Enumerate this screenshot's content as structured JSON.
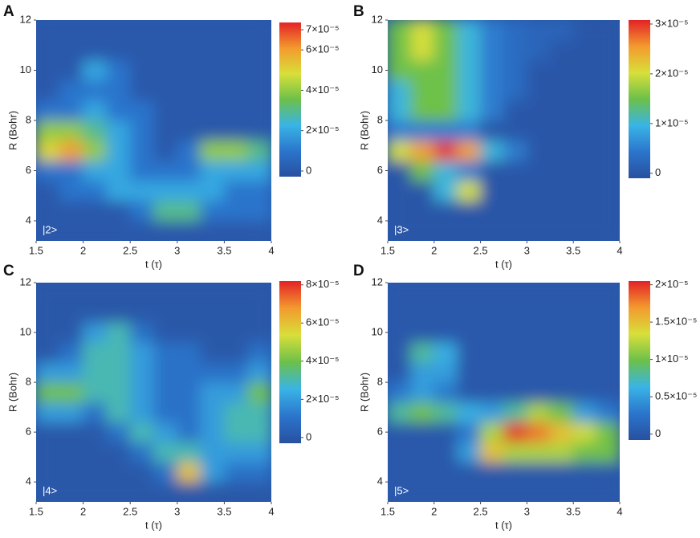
{
  "chart_data": [
    {
      "type": "heatmap",
      "panel_label": "A",
      "annotation": "|2>",
      "xlabel": "t (τ)",
      "ylabel": "R (Bohr)",
      "xlim": [
        1.5,
        4
      ],
      "ylim": [
        3.2,
        12
      ],
      "xticks": [
        1.5,
        2,
        2.5,
        3,
        3.5,
        4
      ],
      "yticks": [
        4,
        6,
        8,
        10,
        12
      ],
      "zlim": [
        -2.8e-06,
        7.36e-05
      ],
      "zticks": [
        0,
        {
          "value": 2e-05,
          "label": "2×10⁻⁵"
        },
        {
          "value": 4e-05,
          "label": "4×10⁻⁵"
        },
        {
          "value": 6e-05,
          "label": "6×10⁻⁵"
        },
        {
          "value": 7e-05,
          "label": "7×10⁻⁵"
        }
      ],
      "colorscale": [
        "#2850a0",
        "#2b75cc",
        "#39b4e6",
        "#6cc04a",
        "#d8df3a",
        "#f39a2e",
        "#e32227"
      ],
      "x": [
        1.625,
        1.875,
        2.125,
        2.375,
        2.625,
        2.875,
        3.125,
        3.375,
        3.625,
        3.875
      ],
      "y": [
        3.6,
        4.4,
        5.2,
        6.0,
        6.8,
        7.6,
        8.4,
        9.2,
        10.0,
        10.8,
        11.6
      ],
      "z": [
        [
          0,
          0,
          0,
          0,
          0,
          0,
          0,
          0,
          0,
          0
        ],
        [
          0,
          0,
          0,
          0,
          1e-05,
          3e-05,
          3e-05,
          1e-05,
          1e-05,
          1e-05
        ],
        [
          0,
          1e-05,
          1e-05,
          2e-05,
          2e-05,
          2e-05,
          2e-05,
          2e-05,
          1e-05,
          1e-05
        ],
        [
          1e-05,
          1e-05,
          2e-05,
          2e-05,
          1e-05,
          1e-05,
          1e-05,
          2e-05,
          2e-05,
          2e-05
        ],
        [
          5e-05,
          6e-05,
          4e-05,
          2e-05,
          1e-05,
          0,
          1e-05,
          4e-05,
          4e-05,
          3e-05
        ],
        [
          4e-05,
          4e-05,
          3e-05,
          2e-05,
          1e-05,
          0,
          0,
          0,
          0,
          0
        ],
        [
          1e-05,
          1e-05,
          2e-05,
          1e-05,
          1e-05,
          0,
          0,
          0,
          0,
          0
        ],
        [
          0,
          1e-05,
          1e-05,
          1e-05,
          0,
          0,
          0,
          0,
          0,
          0
        ],
        [
          0,
          0,
          2e-05,
          1e-05,
          0,
          0,
          0,
          0,
          0,
          0
        ],
        [
          0,
          0,
          0,
          0,
          0,
          0,
          0,
          0,
          0,
          0
        ],
        [
          0,
          0,
          0,
          0,
          0,
          0,
          0,
          0,
          0,
          0
        ]
      ]
    },
    {
      "type": "heatmap",
      "panel_label": "B",
      "annotation": "|3>",
      "xlabel": "t (τ)",
      "ylabel": "R (Bohr)",
      "xlim": [
        1.5,
        4
      ],
      "ylim": [
        3.2,
        12
      ],
      "xticks": [
        1.5,
        2,
        2.5,
        3,
        3.5,
        4
      ],
      "yticks": [
        4,
        6,
        8,
        10,
        12
      ],
      "zlim": [
        -1e-06,
        3.08e-05
      ],
      "zticks": [
        0,
        {
          "value": 1e-05,
          "label": "1×10⁻⁵"
        },
        {
          "value": 2e-05,
          "label": "2×10⁻⁵"
        },
        {
          "value": 3e-05,
          "label": "3×10⁻⁵"
        }
      ],
      "colorscale": [
        "#2850a0",
        "#2b75cc",
        "#39b4e6",
        "#6cc04a",
        "#d8df3a",
        "#f39a2e",
        "#e32227"
      ],
      "x": [
        1.625,
        1.875,
        2.125,
        2.375,
        2.625,
        2.875,
        3.125,
        3.375,
        3.625,
        3.875
      ],
      "y": [
        3.6,
        4.4,
        5.2,
        6.0,
        6.8,
        7.6,
        8.4,
        9.2,
        10.0,
        10.8,
        11.6
      ],
      "z": [
        [
          0,
          0,
          0,
          0,
          0,
          0,
          0,
          0,
          0,
          0
        ],
        [
          0,
          0,
          0,
          0,
          0,
          0,
          0,
          0,
          0,
          0
        ],
        [
          0,
          0,
          1e-05,
          2e-05,
          0,
          0,
          0,
          0,
          0,
          0
        ],
        [
          0,
          1.5e-05,
          1e-05,
          5e-06,
          0,
          0,
          0,
          0,
          0,
          0
        ],
        [
          2e-05,
          2.5e-05,
          3e-05,
          2.5e-05,
          1e-05,
          5e-06,
          0,
          0,
          0,
          0
        ],
        [
          5e-06,
          5e-06,
          5e-06,
          5e-06,
          0,
          0,
          0,
          0,
          0,
          0
        ],
        [
          1e-05,
          1.5e-05,
          1.5e-05,
          1e-05,
          5e-06,
          0,
          0,
          0,
          0,
          0
        ],
        [
          1e-05,
          1.5e-05,
          1.5e-05,
          1e-05,
          5e-06,
          3e-06,
          0,
          0,
          0,
          0
        ],
        [
          1.5e-05,
          1.5e-05,
          1.5e-05,
          1e-05,
          5e-06,
          3e-06,
          0,
          0,
          0,
          0
        ],
        [
          1.5e-05,
          2e-05,
          1.5e-05,
          1e-05,
          5e-06,
          3e-06,
          2e-06,
          0,
          0,
          0
        ],
        [
          1.5e-05,
          2e-05,
          1.5e-05,
          1e-05,
          5e-06,
          3e-06,
          2e-06,
          2e-06,
          0,
          0
        ]
      ]
    },
    {
      "type": "heatmap",
      "panel_label": "C",
      "annotation": "|4>",
      "xlabel": "t (τ)",
      "ylabel": "R (Bohr)",
      "xlim": [
        1.5,
        4
      ],
      "ylim": [
        3.2,
        12
      ],
      "xticks": [
        1.5,
        2,
        2.5,
        3,
        3.5,
        4
      ],
      "yticks": [
        4,
        6,
        8,
        10,
        12
      ],
      "zlim": [
        -3e-06,
        8.2e-05
      ],
      "zticks": [
        0,
        {
          "value": 2e-05,
          "label": "2×10⁻⁵"
        },
        {
          "value": 4e-05,
          "label": "4×10⁻⁵"
        },
        {
          "value": 6e-05,
          "label": "6×10⁻⁵"
        },
        {
          "value": 8e-05,
          "label": "8×10⁻⁵"
        }
      ],
      "colorscale": [
        "#2850a0",
        "#2b75cc",
        "#39b4e6",
        "#6cc04a",
        "#d8df3a",
        "#f39a2e",
        "#e32227"
      ],
      "x": [
        1.625,
        1.875,
        2.125,
        2.375,
        2.625,
        2.875,
        3.125,
        3.375,
        3.625,
        3.875
      ],
      "y": [
        3.6,
        4.4,
        5.2,
        6.0,
        6.8,
        7.6,
        8.4,
        9.2,
        10.0,
        10.8,
        11.6
      ],
      "z": [
        [
          0,
          0,
          0,
          0,
          0,
          0,
          0,
          0,
          0,
          0
        ],
        [
          0,
          0,
          0,
          0,
          0,
          1e-05,
          6e-05,
          2e-05,
          1e-05,
          1e-05
        ],
        [
          0,
          0,
          0,
          0,
          1e-05,
          3e-05,
          3e-05,
          2e-05,
          2e-05,
          2e-05
        ],
        [
          0,
          0,
          0,
          1e-05,
          3e-05,
          2e-05,
          1e-05,
          2e-05,
          3e-05,
          3e-05
        ],
        [
          2e-05,
          2e-05,
          1e-05,
          3e-05,
          2e-05,
          1e-05,
          1e-05,
          2e-05,
          3e-05,
          3e-05
        ],
        [
          4e-05,
          4e-05,
          3e-05,
          3e-05,
          2e-05,
          1e-05,
          1e-05,
          2e-05,
          2e-05,
          4e-05
        ],
        [
          2e-05,
          2e-05,
          3e-05,
          3e-05,
          2e-05,
          1e-05,
          1e-05,
          1e-05,
          1e-05,
          2e-05
        ],
        [
          0,
          1e-05,
          3e-05,
          3e-05,
          2e-05,
          1e-05,
          1e-05,
          0,
          0,
          1e-05
        ],
        [
          0,
          0,
          2e-05,
          3e-05,
          1e-05,
          0,
          0,
          0,
          0,
          0
        ],
        [
          0,
          0,
          0,
          0,
          0,
          0,
          0,
          0,
          0,
          0
        ],
        [
          0,
          0,
          0,
          0,
          0,
          0,
          0,
          0,
          0,
          0
        ]
      ]
    },
    {
      "type": "heatmap",
      "panel_label": "D",
      "annotation": "|5>",
      "xlabel": "t (τ)",
      "ylabel": "R (Bohr)",
      "xlim": [
        1.5,
        4
      ],
      "ylim": [
        3.2,
        12
      ],
      "xticks": [
        1.5,
        2,
        2.5,
        3,
        3.5,
        4
      ],
      "yticks": [
        4,
        6,
        8,
        10,
        12
      ],
      "zlim": [
        -8e-07,
        2.05e-05
      ],
      "zticks": [
        0,
        {
          "value": 5e-06,
          "label": "0.5×10⁻⁵"
        },
        {
          "value": 1e-05,
          "label": "1×10⁻⁵"
        },
        {
          "value": 1.5e-05,
          "label": "1.5×10⁻⁵"
        },
        {
          "value": 2e-05,
          "label": "2×10⁻⁵"
        }
      ],
      "colorscale": [
        "#2850a0",
        "#2b75cc",
        "#39b4e6",
        "#6cc04a",
        "#d8df3a",
        "#f39a2e",
        "#e32227"
      ],
      "x": [
        1.625,
        1.875,
        2.125,
        2.375,
        2.625,
        2.875,
        3.125,
        3.375,
        3.625,
        3.875
      ],
      "y": [
        3.6,
        4.4,
        5.2,
        6.0,
        6.8,
        7.6,
        8.4,
        9.2,
        10.0,
        10.8,
        11.6
      ],
      "z": [
        [
          0,
          0,
          0,
          0,
          0,
          0,
          0,
          0,
          0,
          0
        ],
        [
          0,
          0,
          0,
          0,
          0,
          0,
          0,
          0,
          0,
          0
        ],
        [
          0,
          0,
          0,
          5e-06,
          1.5e-05,
          1.2e-05,
          1.2e-05,
          1.2e-05,
          1e-05,
          1e-05
        ],
        [
          0,
          0,
          0,
          3e-06,
          1.2e-05,
          2e-05,
          1.8e-05,
          1.5e-05,
          1.3e-05,
          1e-05
        ],
        [
          8e-06,
          1e-05,
          8e-06,
          6e-06,
          5e-06,
          8e-06,
          1.2e-05,
          1e-05,
          5e-06,
          3e-06
        ],
        [
          3e-06,
          5e-06,
          3e-06,
          0,
          0,
          0,
          0,
          0,
          0,
          0
        ],
        [
          0,
          5e-06,
          5e-06,
          0,
          0,
          0,
          0,
          0,
          0,
          0
        ],
        [
          0,
          8e-06,
          6e-06,
          0,
          0,
          0,
          0,
          0,
          0,
          0
        ],
        [
          0,
          0,
          0,
          0,
          0,
          0,
          0,
          0,
          0,
          0
        ],
        [
          0,
          0,
          0,
          0,
          0,
          0,
          0,
          0,
          0,
          0
        ],
        [
          0,
          0,
          0,
          0,
          0,
          0,
          0,
          0,
          0,
          0
        ]
      ]
    }
  ]
}
